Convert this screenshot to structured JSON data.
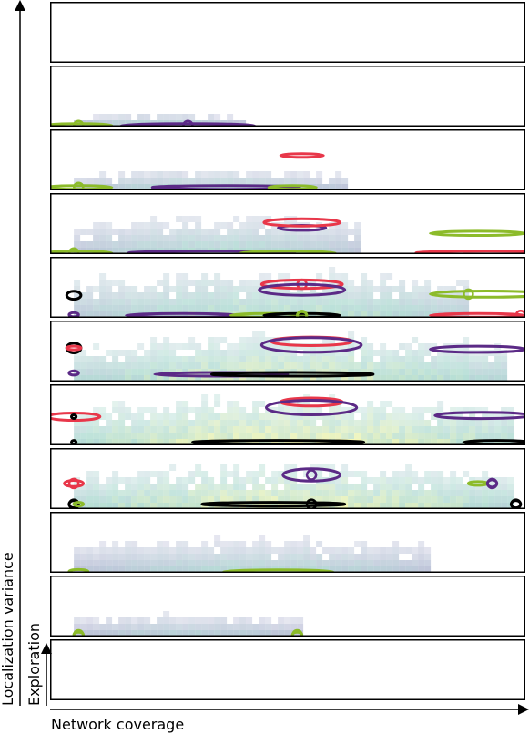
{
  "chart_data": {
    "type": "heatmap",
    "title": "",
    "xlabel": "Network coverage",
    "ylabel_outer": "Localization variance",
    "ylabel_inner": "Exploration",
    "panel_count": 11,
    "panel_order": "top-to-bottom = decreasing localization variance",
    "heatmap_palette": {
      "low": "#b9b3d6",
      "mid": "#a9d8cf",
      "high": "#f2f5a8"
    },
    "series": [
      {
        "color": "#e8374a",
        "key": "red"
      },
      {
        "color": "#5b2a86",
        "key": "purple"
      },
      {
        "color": "#8cbb2a",
        "key": "green"
      },
      {
        "color": "#000000",
        "key": "black"
      }
    ],
    "panels": [
      {
        "index": 0,
        "density": {
          "x": [
            0,
            0
          ],
          "level": [
            0,
            0
          ],
          "maxh": [
            0,
            0
          ]
        },
        "ellipses": []
      },
      {
        "index": 1,
        "density": {
          "x": [
            0.05,
            0.4
          ],
          "level": [
            0.1,
            0.35
          ],
          "maxh": [
            0.1,
            0.18
          ]
        },
        "ellipses": [
          {
            "series": "green",
            "cx": 0.06,
            "cy": 0.02,
            "w": 0.14,
            "h": 0.05,
            "marker": 0.06
          },
          {
            "series": "purple",
            "cx": 0.29,
            "cy": 0.02,
            "w": 0.28,
            "h": 0.05,
            "marker": 0.29
          }
        ]
      },
      {
        "index": 2,
        "density": {
          "x": [
            0.05,
            0.62
          ],
          "level": [
            0.12,
            0.4
          ],
          "maxh": [
            0.2,
            0.3
          ]
        },
        "ellipses": [
          {
            "series": "green",
            "cx": 0.06,
            "cy": 0.05,
            "w": 0.14,
            "h": 0.05,
            "marker": 0.06
          },
          {
            "series": "purple",
            "cx": 0.37,
            "cy": 0.05,
            "w": 0.31,
            "h": 0.06
          },
          {
            "series": "green",
            "cx": 0.51,
            "cy": 0.05,
            "w": 0.1,
            "h": 0.03
          },
          {
            "series": "red",
            "cx": 0.53,
            "cy": 0.57,
            "w": 0.09,
            "h": 0.06
          }
        ]
      },
      {
        "index": 3,
        "density": {
          "x": [
            0.05,
            0.65
          ],
          "level": [
            0.15,
            0.45
          ],
          "maxh": [
            0.45,
            0.55
          ]
        },
        "ellipses": [
          {
            "series": "green",
            "cx": 0.06,
            "cy": 0.02,
            "w": 0.14,
            "h": 0.05,
            "marker": 0.05
          },
          {
            "series": "purple",
            "cx": 0.34,
            "cy": 0.02,
            "w": 0.35,
            "h": 0.06
          },
          {
            "series": "green",
            "cx": 0.5,
            "cy": 0.02,
            "w": 0.2,
            "h": 0.06
          },
          {
            "series": "purple",
            "cx": 0.53,
            "cy": 0.43,
            "w": 0.1,
            "h": 0.08
          },
          {
            "series": "red",
            "cx": 0.53,
            "cy": 0.52,
            "w": 0.16,
            "h": 0.12
          },
          {
            "series": "green",
            "cx": 0.9,
            "cy": 0.34,
            "w": 0.2,
            "h": 0.07
          },
          {
            "series": "red",
            "cx": 0.92,
            "cy": 0.02,
            "w": 0.3,
            "h": 0.06
          }
        ]
      },
      {
        "index": 4,
        "density": {
          "x": [
            0.05,
            0.88
          ],
          "level": [
            0.25,
            0.6
          ],
          "maxh": [
            0.55,
            0.7
          ]
        },
        "ellipses": [
          {
            "series": "black",
            "cx": 0.05,
            "cy": 0.37,
            "w": 0.03,
            "h": 0.13
          },
          {
            "series": "purple",
            "cx": 0.05,
            "cy": 0.05,
            "w": 0.02,
            "h": 0.07
          },
          {
            "series": "red",
            "cx": 0.53,
            "cy": 0.55,
            "w": 0.17,
            "h": 0.14,
            "marker": 0.53
          },
          {
            "series": "purple",
            "cx": 0.53,
            "cy": 0.46,
            "w": 0.18,
            "h": 0.18
          },
          {
            "series": "purple",
            "cx": 0.28,
            "cy": 0.04,
            "w": 0.24,
            "h": 0.06
          },
          {
            "series": "green",
            "cx": 0.46,
            "cy": 0.04,
            "w": 0.16,
            "h": 0.06
          },
          {
            "series": "black",
            "cx": 0.53,
            "cy": 0.04,
            "w": 0.16,
            "h": 0.06
          },
          {
            "series": "green",
            "cx": 0.53,
            "cy": 0.04,
            "w": 0.02,
            "h": 0.12,
            "marker": 0.53
          },
          {
            "series": "green",
            "cx": 0.92,
            "cy": 0.39,
            "w": 0.24,
            "h": 0.1,
            "marker": 0.88
          },
          {
            "series": "red",
            "cx": 0.9,
            "cy": 0.04,
            "w": 0.2,
            "h": 0.06,
            "marker": 0.99
          }
        ]
      },
      {
        "index": 5,
        "density": {
          "x": [
            0.05,
            0.95
          ],
          "level": [
            0.35,
            0.75
          ],
          "maxh": [
            0.55,
            0.7
          ]
        },
        "ellipses": [
          {
            "series": "black",
            "cx": 0.05,
            "cy": 0.55,
            "w": 0.03,
            "h": 0.16
          },
          {
            "series": "red",
            "cx": 0.05,
            "cy": 0.55,
            "w": 0.03,
            "h": 0.06
          },
          {
            "series": "purple",
            "cx": 0.05,
            "cy": 0.14,
            "w": 0.02,
            "h": 0.07
          },
          {
            "series": "red",
            "cx": 0.55,
            "cy": 0.66,
            "w": 0.17,
            "h": 0.14
          },
          {
            "series": "purple",
            "cx": 0.55,
            "cy": 0.6,
            "w": 0.21,
            "h": 0.24
          },
          {
            "series": "purple",
            "cx": 0.36,
            "cy": 0.12,
            "w": 0.28,
            "h": 0.06
          },
          {
            "series": "black",
            "cx": 0.51,
            "cy": 0.12,
            "w": 0.34,
            "h": 0.06
          },
          {
            "series": "purple",
            "cx": 0.9,
            "cy": 0.53,
            "w": 0.2,
            "h": 0.1
          }
        ]
      },
      {
        "index": 6,
        "density": {
          "x": [
            0.05,
            0.97
          ],
          "level": [
            0.45,
            0.9
          ],
          "maxh": [
            0.55,
            0.7
          ]
        },
        "ellipses": [
          {
            "series": "red",
            "cx": 0.05,
            "cy": 0.47,
            "w": 0.11,
            "h": 0.12
          },
          {
            "series": "black",
            "cx": 0.05,
            "cy": 0.47,
            "w": 0.01,
            "h": 0.06
          },
          {
            "series": "black",
            "cx": 0.05,
            "cy": 0.05,
            "w": 0.01,
            "h": 0.06
          },
          {
            "series": "red",
            "cx": 0.55,
            "cy": 0.71,
            "w": 0.13,
            "h": 0.13
          },
          {
            "series": "purple",
            "cx": 0.55,
            "cy": 0.62,
            "w": 0.19,
            "h": 0.24
          },
          {
            "series": "black",
            "cx": 0.48,
            "cy": 0.05,
            "w": 0.36,
            "h": 0.06
          },
          {
            "series": "purple",
            "cx": 0.91,
            "cy": 0.49,
            "w": 0.2,
            "h": 0.1
          },
          {
            "series": "black",
            "cx": 0.94,
            "cy": 0.05,
            "w": 0.14,
            "h": 0.06
          }
        ]
      },
      {
        "index": 7,
        "density": {
          "x": [
            0.05,
            0.97
          ],
          "level": [
            0.4,
            0.85
          ],
          "maxh": [
            0.5,
            0.65
          ]
        },
        "ellipses": [
          {
            "series": "red",
            "cx": 0.05,
            "cy": 0.42,
            "w": 0.04,
            "h": 0.1,
            "marker": 0.05
          },
          {
            "series": "black",
            "cx": 0.05,
            "cy": 0.08,
            "w": 0.02,
            "h": 0.12,
            "marker": 0.05
          },
          {
            "series": "green",
            "cx": 0.06,
            "cy": 0.08,
            "w": 0.02,
            "h": 0.06
          },
          {
            "series": "purple",
            "cx": 0.55,
            "cy": 0.56,
            "w": 0.12,
            "h": 0.2,
            "marker": 0.55
          },
          {
            "series": "black",
            "cx": 0.47,
            "cy": 0.08,
            "w": 0.3,
            "h": 0.06,
            "marker": 0.55
          },
          {
            "series": "green",
            "cx": 0.9,
            "cy": 0.42,
            "w": 0.04,
            "h": 0.05
          },
          {
            "series": "purple",
            "cx": 0.93,
            "cy": 0.42,
            "w": 0.02,
            "h": 0.12,
            "marker": 0.93
          },
          {
            "series": "black",
            "cx": 0.98,
            "cy": 0.08,
            "w": 0.02,
            "h": 0.12,
            "marker": 0.98
          }
        ]
      },
      {
        "index": 8,
        "density": {
          "x": [
            0.05,
            0.8
          ],
          "level": [
            0.12,
            0.4
          ],
          "maxh": [
            0.4,
            0.5
          ]
        },
        "ellipses": [
          {
            "series": "green",
            "cx": 0.06,
            "cy": 0.02,
            "w": 0.04,
            "h": 0.07
          },
          {
            "series": "green",
            "cx": 0.48,
            "cy": 0.02,
            "w": 0.23,
            "h": 0.06
          }
        ]
      },
      {
        "index": 9,
        "density": {
          "x": [
            0.05,
            0.52
          ],
          "level": [
            0.1,
            0.3
          ],
          "maxh": [
            0.25,
            0.3
          ]
        },
        "ellipses": [
          {
            "series": "green",
            "cx": 0.06,
            "cy": 0.03,
            "w": 0.02,
            "h": 0.08,
            "marker": 0.06
          },
          {
            "series": "green",
            "cx": 0.52,
            "cy": 0.03,
            "w": 0.02,
            "h": 0.08,
            "marker": 0.52
          }
        ]
      },
      {
        "index": 10,
        "density": {
          "x": [
            0,
            0
          ],
          "level": [
            0,
            0
          ],
          "maxh": [
            0,
            0
          ]
        },
        "ellipses": []
      }
    ]
  }
}
